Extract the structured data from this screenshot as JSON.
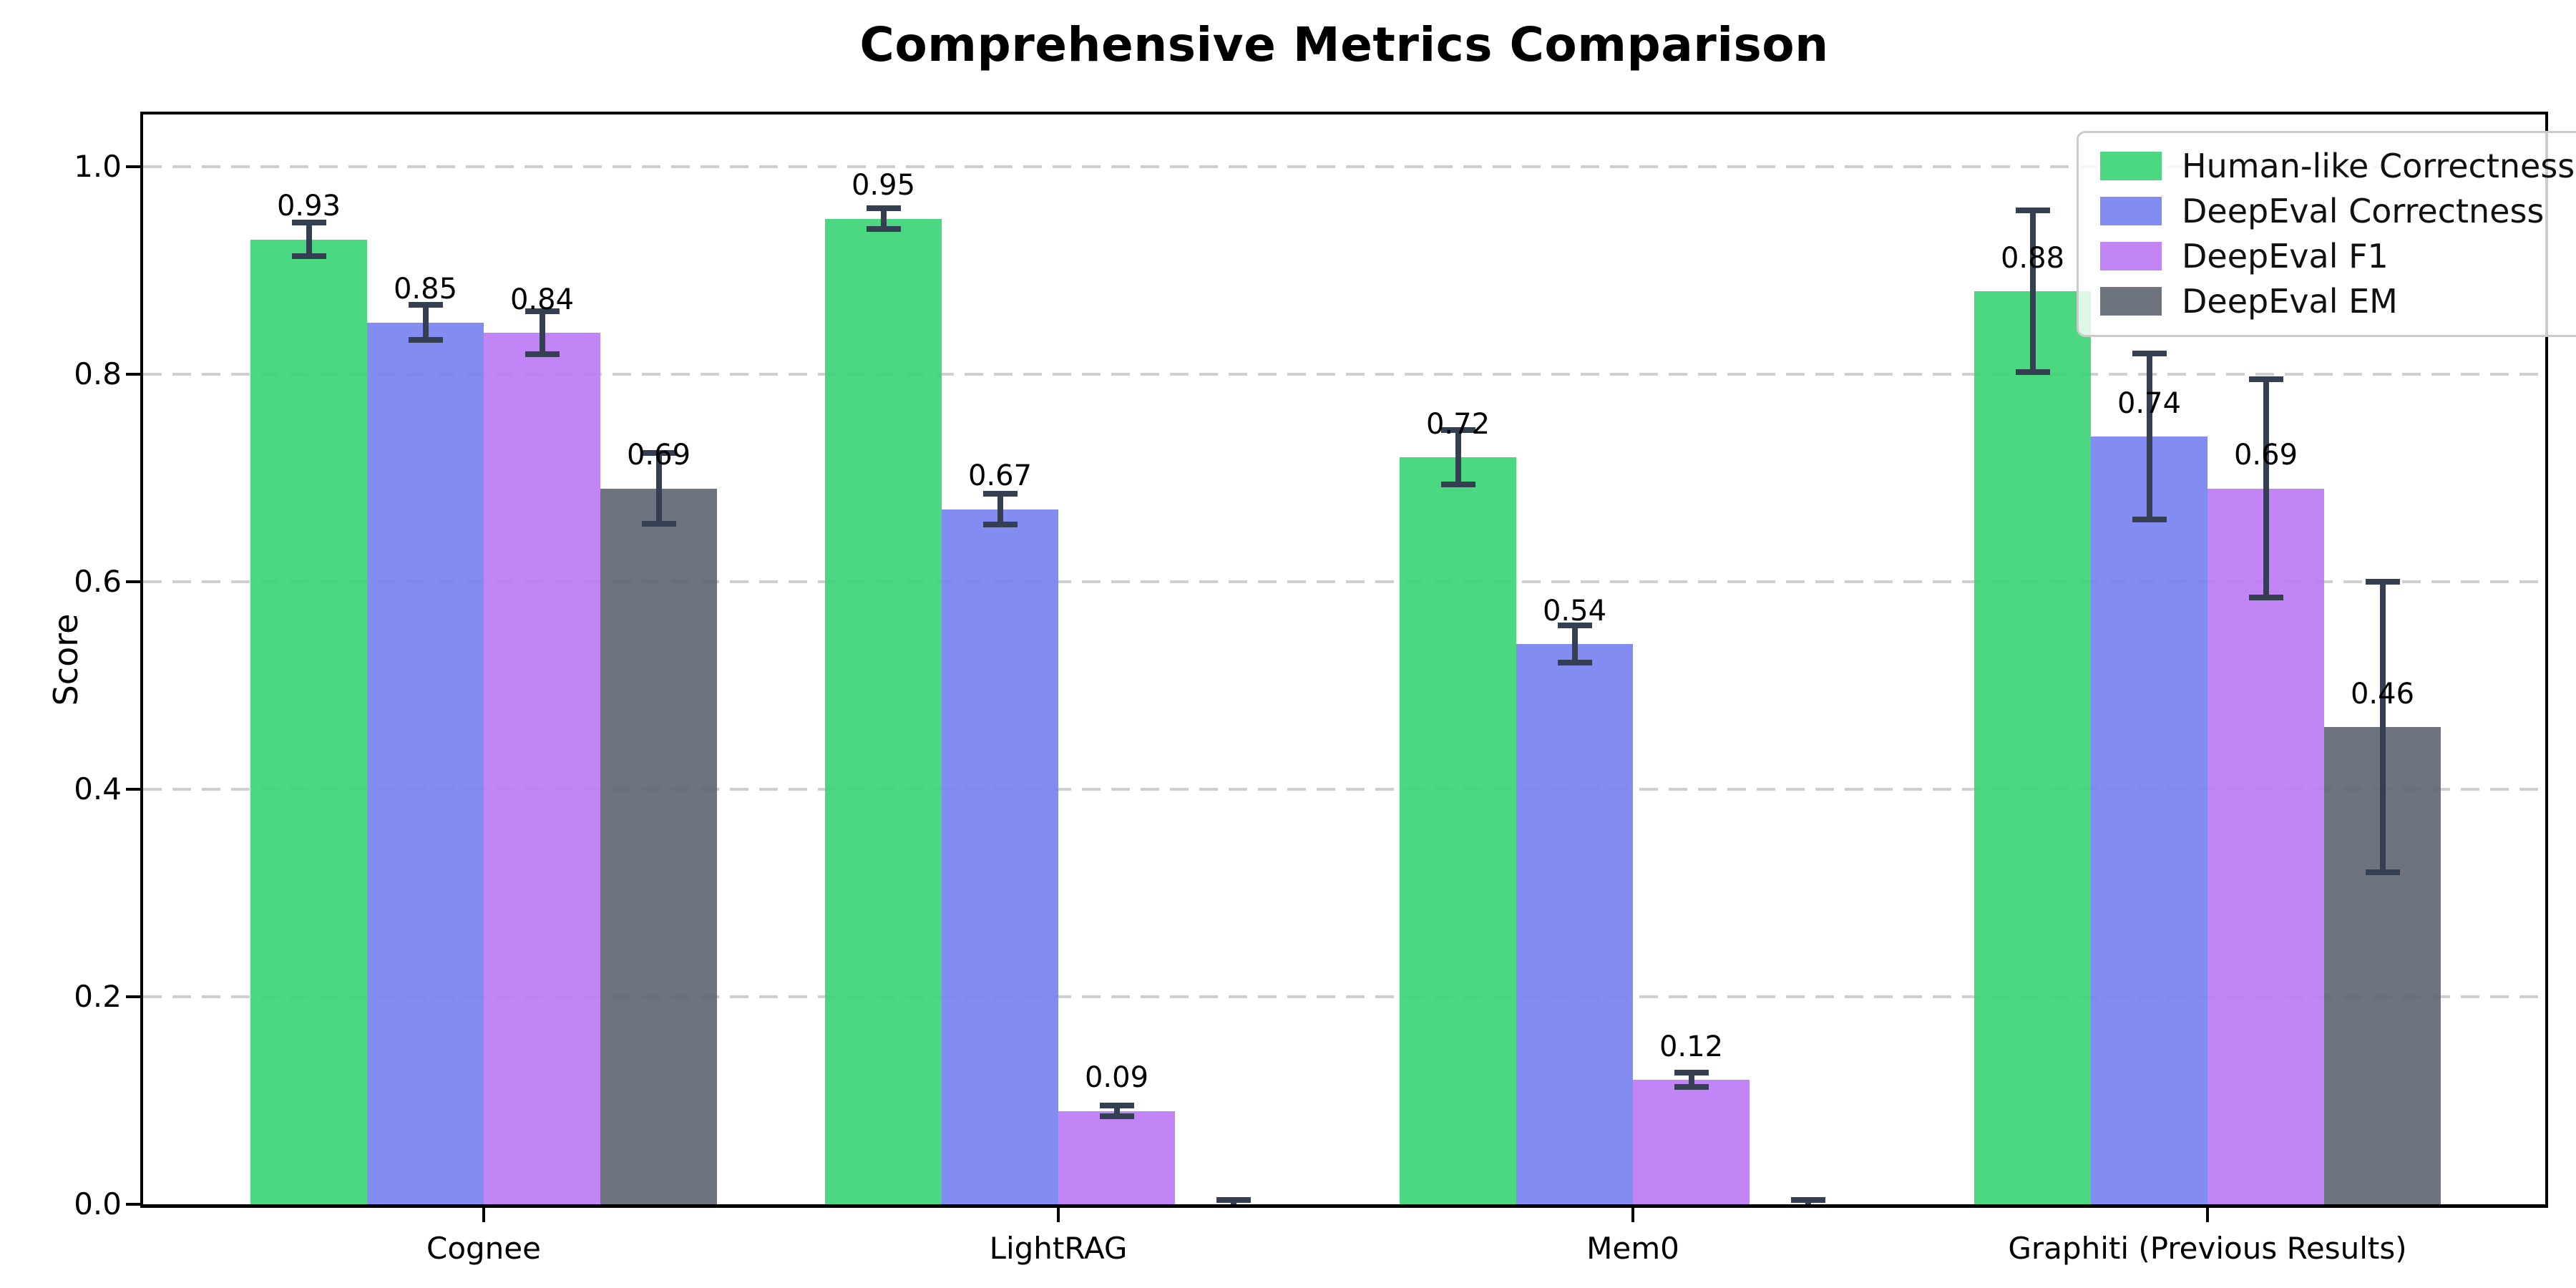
{
  "chart_data": {
    "type": "bar",
    "title": "Comprehensive Metrics Comparison",
    "ylabel": "Score",
    "xlabel": "",
    "categories": [
      "Cognee",
      "LightRAG",
      "Mem0",
      "Graphiti (Previous Results)"
    ],
    "series": [
      {
        "name": "Human-like Correctness",
        "color": "#37d473",
        "values": [
          0.93,
          0.95,
          0.72,
          0.88
        ],
        "errors": [
          0.016,
          0.01,
          0.026,
          0.078
        ],
        "labels": [
          "0.93",
          "0.95",
          "0.72",
          "0.88"
        ]
      },
      {
        "name": "DeepEval Correctness",
        "color": "#7480f0",
        "values": [
          0.85,
          0.67,
          0.54,
          0.74
        ],
        "errors": [
          0.017,
          0.015,
          0.018,
          0.08
        ],
        "labels": [
          "0.85",
          "0.67",
          "0.54",
          "0.74"
        ]
      },
      {
        "name": "DeepEval F1",
        "color": "#bb78f4",
        "values": [
          0.84,
          0.09,
          0.12,
          0.69
        ],
        "errors": [
          0.021,
          0.005,
          0.007,
          0.105
        ],
        "labels": [
          "0.84",
          "0.09",
          "0.12",
          "0.69"
        ]
      },
      {
        "name": "DeepEval EM",
        "color": "#5e6472",
        "values": [
          0.69,
          0.0,
          0.0,
          0.46
        ],
        "errors": [
          0.034,
          0.004,
          0.004,
          0.14
        ],
        "labels": [
          "0.69",
          null,
          null,
          "0.46"
        ]
      }
    ],
    "ytick_labels": [
      "0.0",
      "0.2",
      "0.4",
      "0.6",
      "0.8",
      "1.0"
    ],
    "yticks": [
      0.0,
      0.2,
      0.4,
      0.6,
      0.8,
      1.0
    ],
    "ylim": [
      0,
      1.05
    ],
    "bar_alpha": 0.9,
    "error_color": "#344051",
    "grid_color": "#cfcfcf",
    "grid_style": "dashed-horizontal",
    "legend_position": "upper-right"
  }
}
